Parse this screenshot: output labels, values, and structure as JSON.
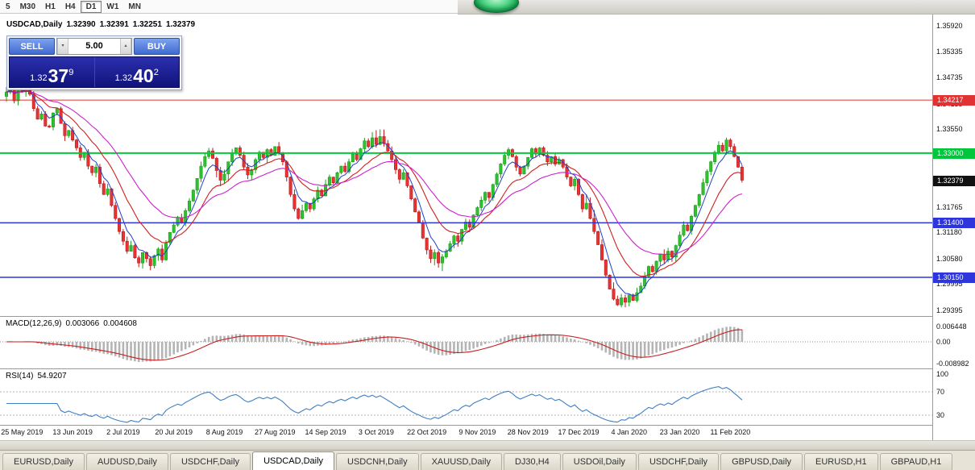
{
  "toolbar": {
    "timeframes": [
      "5",
      "M30",
      "H1",
      "H4",
      "D1",
      "W1",
      "MN"
    ],
    "active": "D1"
  },
  "chart_header": {
    "symbol_tf": "USDCAD,Daily",
    "open": "1.32390",
    "high": "1.32391",
    "low": "1.32251",
    "close": "1.32379"
  },
  "trade_panel": {
    "sell_label": "SELL",
    "buy_label": "BUY",
    "volume": "5.00",
    "spin_down": "▾",
    "spin_up": "▴",
    "sell_price": {
      "prefix": "1.32",
      "big": "37",
      "sup": "9"
    },
    "buy_price": {
      "prefix": "1.32",
      "big": "40",
      "sup": "2"
    }
  },
  "price_axis": {
    "labels": [
      "1.35920",
      "1.35335",
      "1.34735",
      "1.34135",
      "1.33550",
      "1.32965",
      "1.32380",
      "1.31765",
      "1.31180",
      "1.30580",
      "1.29995",
      "1.29395"
    ],
    "tags": [
      {
        "text": "1.34217",
        "bg": "#e03232",
        "fg": "#ffffff"
      },
      {
        "text": "1.33000",
        "bg": "#00c63c",
        "fg": "#ffffff"
      },
      {
        "text": "1.32379",
        "bg": "#111111",
        "fg": "#ffffff"
      },
      {
        "text": "1.31400",
        "bg": "#2d35dd",
        "fg": "#ffffff"
      },
      {
        "text": "1.30150",
        "bg": "#2d35dd",
        "fg": "#ffffff"
      }
    ]
  },
  "hlines": [
    {
      "price": 1.34217,
      "color": "#e03232",
      "width": 1
    },
    {
      "price": 1.33,
      "color": "#00cc3c",
      "width": 2
    },
    {
      "price": 1.314,
      "color": "#2d35dd",
      "width": 1.5
    },
    {
      "price": 1.3015,
      "color": "#2d35dd",
      "width": 1.5
    }
  ],
  "indicators": {
    "macd": {
      "name": "MACD(12,26,9)",
      "value_main": "0.003066",
      "value_signal": "0.004608",
      "axis": [
        "0.006448",
        "0.00",
        "-0.008982"
      ],
      "bar_color": "#b4b4b4",
      "signal_color": "#c42020"
    },
    "rsi": {
      "name": "RSI(14)",
      "value": "54.9207",
      "axis": [
        "100",
        "70",
        "30"
      ],
      "levels": [
        70,
        30
      ],
      "line_color": "#3f7fc1"
    }
  },
  "date_axis": [
    {
      "text": "25 May 2019",
      "index": 4
    },
    {
      "text": "13 Jun 2019",
      "index": 17
    },
    {
      "text": "2 Jul 2019",
      "index": 30
    },
    {
      "text": "20 Jul 2019",
      "index": 43
    },
    {
      "text": "8 Aug 2019",
      "index": 56
    },
    {
      "text": "27 Aug 2019",
      "index": 69
    },
    {
      "text": "14 Sep 2019",
      "index": 82
    },
    {
      "text": "3 Oct 2019",
      "index": 95
    },
    {
      "text": "22 Oct 2019",
      "index": 108
    },
    {
      "text": "9 Nov 2019",
      "index": 121
    },
    {
      "text": "28 Nov 2019",
      "index": 134
    },
    {
      "text": "17 Dec 2019",
      "index": 147
    },
    {
      "text": "4 Jan 2020",
      "index": 160
    },
    {
      "text": "23 Jan 2020",
      "index": 173
    },
    {
      "text": "11 Feb 2020",
      "index": 186
    }
  ],
  "tabs": {
    "active_index": 3,
    "items": [
      "EURUSD,Daily",
      "AUDUSD,Daily",
      "USDCHF,Daily",
      "USDCAD,Daily",
      "USDCNH,Daily",
      "XAUUSD,Daily",
      "DJ30,H4",
      "USDOil,Daily",
      "USDCHF,Daily",
      "GBPUSD,Daily",
      "EURUSD,H1",
      "GBPAUD,H1"
    ]
  },
  "chart_data": {
    "type": "candlestick",
    "symbol": "USDCAD",
    "timeframe": "Daily",
    "ylim": {
      "top": 1.3605,
      "bottom": 1.293
    },
    "levels": [
      1.34217,
      1.33,
      1.314,
      1.3015
    ],
    "last_price": 1.32379,
    "ma_colors": [
      "#2040c8",
      "#d02020",
      "#cc22cc"
    ],
    "up_color": "#30c030",
    "down_color": "#e43434",
    "first_open": 1.343,
    "closes": [
      1.344,
      1.3455,
      1.342,
      1.3448,
      1.3442,
      1.3458,
      1.3435,
      1.3402,
      1.3378,
      1.339,
      1.3362,
      1.336,
      1.3392,
      1.3402,
      1.3368,
      1.334,
      1.3352,
      1.333,
      1.3312,
      1.329,
      1.3302,
      1.327,
      1.3255,
      1.3268,
      1.323,
      1.3205,
      1.3218,
      1.318,
      1.315,
      1.312,
      1.3098,
      1.3075,
      1.3088,
      1.306,
      1.3048,
      1.3072,
      1.3058,
      1.3042,
      1.3065,
      1.308,
      1.3055,
      1.3095,
      1.3118,
      1.3135,
      1.3152,
      1.314,
      1.3168,
      1.319,
      1.3215,
      1.3242,
      1.327,
      1.3292,
      1.3305,
      1.3288,
      1.326,
      1.3238,
      1.3252,
      1.328,
      1.33,
      1.3312,
      1.3295,
      1.3268,
      1.325,
      1.3262,
      1.3285,
      1.3302,
      1.329,
      1.3308,
      1.3295,
      1.3315,
      1.33,
      1.328,
      1.3245,
      1.3205,
      1.3172,
      1.315,
      1.3168,
      1.3185,
      1.3172,
      1.3195,
      1.3215,
      1.3202,
      1.3228,
      1.3245,
      1.3232,
      1.3255,
      1.327,
      1.3258,
      1.328,
      1.3298,
      1.3285,
      1.331,
      1.3328,
      1.3315,
      1.3335,
      1.332,
      1.3338,
      1.3322,
      1.3305,
      1.3285,
      1.3262,
      1.324,
      1.3255,
      1.3225,
      1.3195,
      1.3165,
      1.314,
      1.3105,
      1.3078,
      1.3058,
      1.3072,
      1.3048,
      1.3062,
      1.3075,
      1.3092,
      1.311,
      1.3098,
      1.3125,
      1.3142,
      1.313,
      1.3158,
      1.3175,
      1.3192,
      1.321,
      1.3198,
      1.3228,
      1.3252,
      1.3275,
      1.3295,
      1.3308,
      1.3292,
      1.3268,
      1.3252,
      1.327,
      1.329,
      1.331,
      1.3298,
      1.3312,
      1.3295,
      1.328,
      1.3292,
      1.3275,
      1.3285,
      1.3268,
      1.3245,
      1.3225,
      1.324,
      1.3205,
      1.3172,
      1.3185,
      1.315,
      1.312,
      1.309,
      1.3055,
      1.302,
      1.2988,
      1.2965,
      1.2952,
      1.2968,
      1.2958,
      1.2975,
      1.2962,
      1.298,
      1.2995,
      1.3018,
      1.304,
      1.3028,
      1.3052,
      1.3068,
      1.3055,
      1.3075,
      1.3062,
      1.3088,
      1.3112,
      1.3135,
      1.3122,
      1.3155,
      1.318,
      1.3205,
      1.3232,
      1.3258,
      1.328,
      1.3302,
      1.3318,
      1.3305,
      1.333,
      1.3315,
      1.3292,
      1.3268,
      1.32379
    ]
  }
}
